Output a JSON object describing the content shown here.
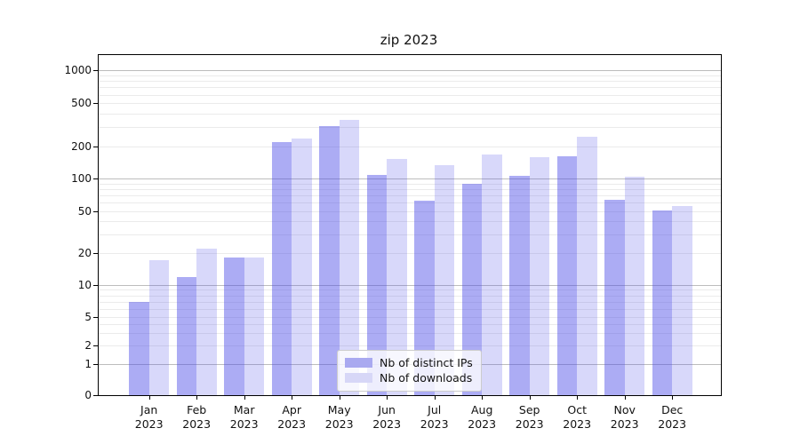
{
  "title": "zip 2023",
  "colors": {
    "bar_distinct_ips": "rgba(70,70,230,0.45)",
    "bar_downloads": "rgba(70,70,230,0.21)",
    "legend_swatch_distinct_ips": "#a9a9f0",
    "legend_swatch_downloads": "#d7d7f7",
    "grid_major": "#bdbdbd",
    "grid_minor": "#ebebeb",
    "axis": "#000000"
  },
  "legend": {
    "items": [
      {
        "label": "Nb of distinct IPs"
      },
      {
        "label": "Nb of downloads"
      }
    ]
  },
  "chart_data": {
    "type": "bar",
    "title": "zip 2023",
    "categories": [
      "Jan",
      "Feb",
      "Mar",
      "Apr",
      "May",
      "Jun",
      "Jul",
      "Aug",
      "Sep",
      "Oct",
      "Nov",
      "Dec"
    ],
    "year": "2023",
    "series": [
      {
        "name": "Nb of distinct IPs",
        "values": [
          7,
          12,
          18,
          220,
          305,
          108,
          62,
          90,
          106,
          162,
          64,
          51
        ]
      },
      {
        "name": "Nb of downloads",
        "values": [
          17,
          22,
          18,
          236,
          350,
          152,
          134,
          168,
          158,
          245,
          103,
          56
        ]
      }
    ],
    "yscale": "symlog",
    "y_ticks": [
      1000,
      500,
      200,
      100,
      50,
      20,
      10,
      5,
      2,
      1,
      0
    ],
    "ylim": [
      0,
      1400
    ],
    "xlabel": "",
    "ylabel": "",
    "grid": true,
    "legend_position": "lower center-right inside plot"
  }
}
